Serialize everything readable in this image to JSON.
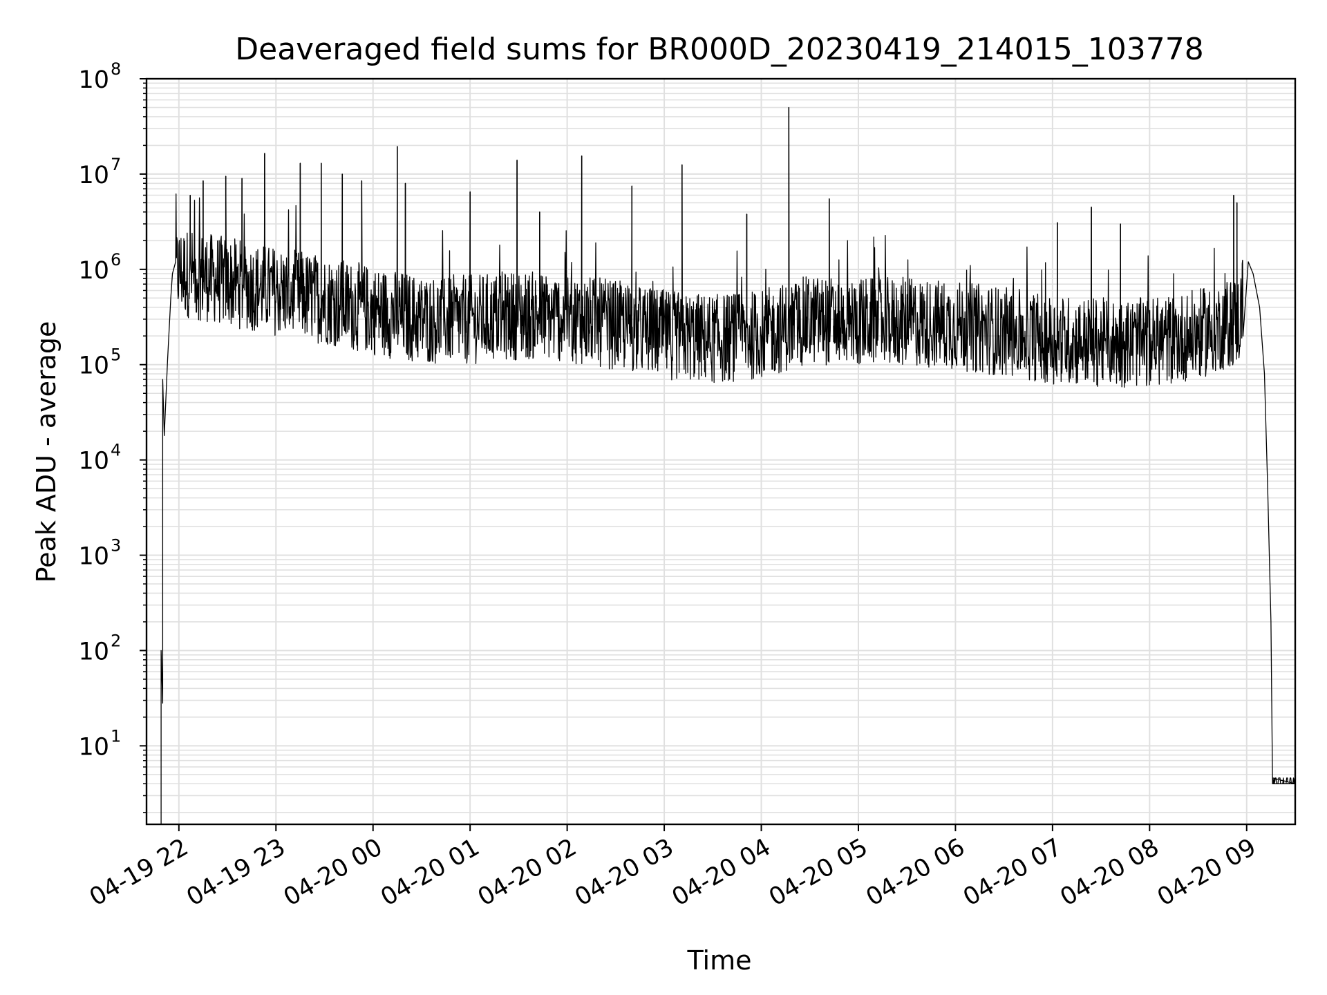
{
  "chart_data": {
    "type": "line",
    "title": "Deaveraged field sums for BR000D_20230419_214015_103778",
    "xlabel": "Time",
    "ylabel": "Peak ADU - average",
    "yscale": "log",
    "ylim": [
      1.5,
      100000000
    ],
    "xlim": [
      "2023-04-19 21:40",
      "2023-04-20 09:30"
    ],
    "grid": true,
    "line_color": "#000000",
    "grid_color": "#e0e0e0",
    "x_ticks": [
      {
        "value": "2023-04-19 22:00",
        "label": "04-19 22"
      },
      {
        "value": "2023-04-19 23:00",
        "label": "04-19 23"
      },
      {
        "value": "2023-04-20 00:00",
        "label": "04-20 00"
      },
      {
        "value": "2023-04-20 01:00",
        "label": "04-20 01"
      },
      {
        "value": "2023-04-20 02:00",
        "label": "04-20 02"
      },
      {
        "value": "2023-04-20 03:00",
        "label": "04-20 03"
      },
      {
        "value": "2023-04-20 04:00",
        "label": "04-20 04"
      },
      {
        "value": "2023-04-20 05:00",
        "label": "04-20 05"
      },
      {
        "value": "2023-04-20 06:00",
        "label": "04-20 06"
      },
      {
        "value": "2023-04-20 07:00",
        "label": "04-20 07"
      },
      {
        "value": "2023-04-20 08:00",
        "label": "04-20 08"
      },
      {
        "value": "2023-04-20 09:00",
        "label": "04-20 09"
      }
    ],
    "y_ticks": [
      {
        "value": 10,
        "base": "10",
        "exp": "1"
      },
      {
        "value": 100,
        "base": "10",
        "exp": "2"
      },
      {
        "value": 1000,
        "base": "10",
        "exp": "3"
      },
      {
        "value": 10000,
        "base": "10",
        "exp": "4"
      },
      {
        "value": 100000,
        "base": "10",
        "exp": "5"
      },
      {
        "value": 1000000,
        "base": "10",
        "exp": "6"
      },
      {
        "value": 10000000,
        "base": "10",
        "exp": "7"
      },
      {
        "value": 100000000,
        "base": "10",
        "exp": "8"
      }
    ],
    "series": [
      {
        "points": [
          [
            "2023-04-19 21:49",
            1.5
          ],
          [
            "2023-04-19 21:49",
            100
          ],
          [
            "2023-04-19 21:50",
            28
          ],
          [
            "2023-04-19 21:50",
            70000
          ],
          [
            "2023-04-19 21:51",
            18000
          ],
          [
            "2023-04-19 21:53",
            110000
          ],
          [
            "2023-04-19 21:55",
            500000
          ],
          [
            "2023-04-19 21:56",
            900000
          ],
          [
            "2023-04-19 21:59",
            1300000
          ],
          [
            "2023-04-19 22:30",
            1000000
          ],
          [
            "2023-04-19 23:00",
            800000
          ],
          [
            "2023-04-19 23:30",
            650000
          ],
          [
            "2023-04-20 00:00",
            500000
          ],
          [
            "2023-04-20 00:30",
            400000
          ],
          [
            "2023-04-20 01:00",
            400000
          ],
          [
            "2023-04-20 01:30",
            450000
          ],
          [
            "2023-04-20 02:00",
            420000
          ],
          [
            "2023-04-20 02:30",
            350000
          ],
          [
            "2023-04-20 03:00",
            280000
          ],
          [
            "2023-04-20 03:30",
            250000
          ],
          [
            "2023-04-20 04:00",
            280000
          ],
          [
            "2023-04-20 04:30",
            400000
          ],
          [
            "2023-04-20 05:00",
            380000
          ],
          [
            "2023-04-20 05:30",
            380000
          ],
          [
            "2023-04-20 06:00",
            350000
          ],
          [
            "2023-04-20 06:30",
            300000
          ],
          [
            "2023-04-20 07:00",
            250000
          ],
          [
            "2023-04-20 07:30",
            230000
          ],
          [
            "2023-04-20 08:00",
            230000
          ],
          [
            "2023-04-20 08:30",
            280000
          ],
          [
            "2023-04-20 08:56",
            400000
          ],
          [
            "2023-04-20 08:58",
            800000
          ],
          [
            "2023-04-20 09:01",
            1200000
          ],
          [
            "2023-04-20 09:04",
            900000
          ],
          [
            "2023-04-20 09:08",
            400000
          ],
          [
            "2023-04-20 09:11",
            80000
          ],
          [
            "2023-04-20 09:13",
            5000
          ],
          [
            "2023-04-20 09:15",
            200
          ],
          [
            "2023-04-20 09:16",
            4
          ],
          [
            "2023-04-20 09:30",
            4
          ]
        ],
        "noise_band": {
          "from": "2023-04-19 21:58",
          "to": "2023-04-20 08:58",
          "low_factor": 0.25,
          "high_factor": 2.2
        },
        "spikes": [
          [
            "2023-04-19 22:07",
            6000000
          ],
          [
            "2023-04-19 22:15",
            8500000
          ],
          [
            "2023-04-19 22:29",
            9500000
          ],
          [
            "2023-04-19 22:39",
            9000000
          ],
          [
            "2023-04-19 22:53",
            16500000
          ],
          [
            "2023-04-19 23:15",
            13000000
          ],
          [
            "2023-04-19 23:28",
            13000000
          ],
          [
            "2023-04-19 23:41",
            10000000
          ],
          [
            "2023-04-19 23:53",
            8500000
          ],
          [
            "2023-04-20 00:15",
            19500000
          ],
          [
            "2023-04-20 00:20",
            8000000
          ],
          [
            "2023-04-20 01:00",
            6500000
          ],
          [
            "2023-04-20 01:29",
            14000000
          ],
          [
            "2023-04-20 01:43",
            4000000
          ],
          [
            "2023-04-20 02:09",
            15500000
          ],
          [
            "2023-04-20 02:40",
            7500000
          ],
          [
            "2023-04-20 03:11",
            12500000
          ],
          [
            "2023-04-20 03:51",
            3800000
          ],
          [
            "2023-04-20 04:17",
            50000000
          ],
          [
            "2023-04-20 04:42",
            5500000
          ],
          [
            "2023-04-20 07:03",
            3100000
          ],
          [
            "2023-04-20 07:24",
            4500000
          ],
          [
            "2023-04-20 07:42",
            3000000
          ],
          [
            "2023-04-20 08:52",
            6000000
          ],
          [
            "2023-04-20 08:54",
            5000000
          ]
        ]
      }
    ]
  }
}
